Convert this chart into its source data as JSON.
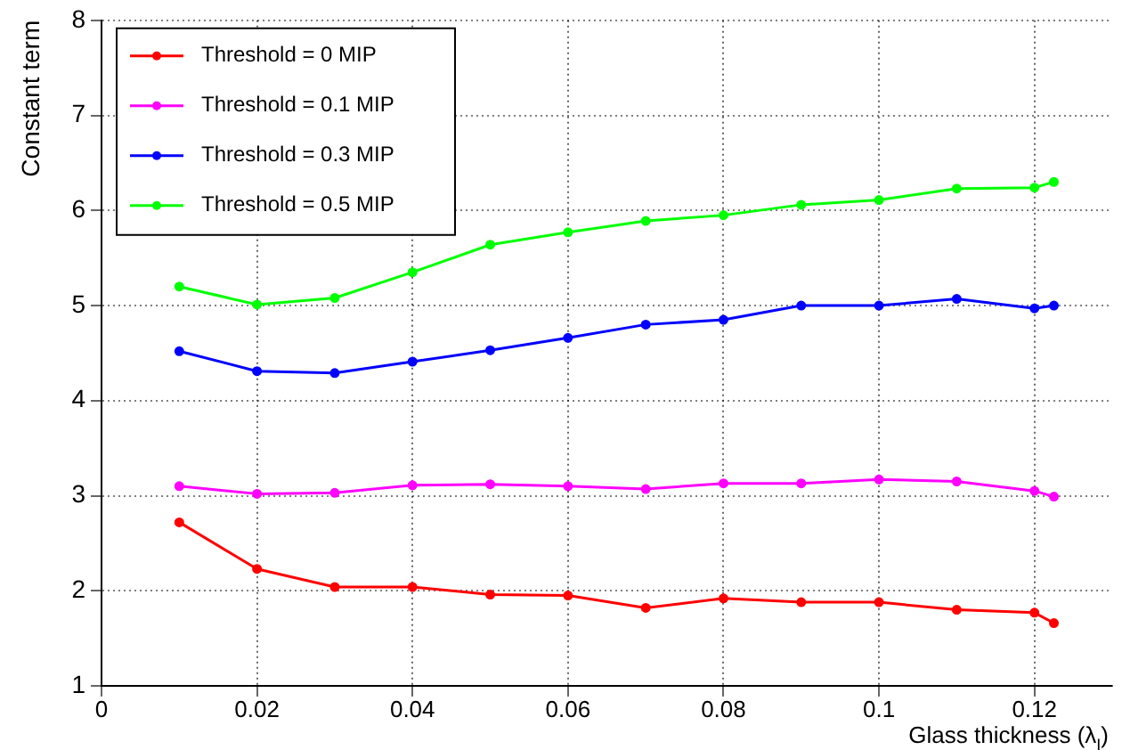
{
  "chart_data": {
    "type": "line",
    "xlabel": "Glass thickness (λ$_{I}$)",
    "ylabel": "Constant term",
    "x": [
      0.01,
      0.02,
      0.03,
      0.04,
      0.05,
      0.06,
      0.07,
      0.08,
      0.09,
      0.1,
      0.11,
      0.12,
      0.1225
    ],
    "series": [
      {
        "name": "Threshold = 0 MIP",
        "color": "#ff0000",
        "values": [
          2.72,
          2.23,
          2.04,
          2.04,
          1.96,
          1.95,
          1.82,
          1.92,
          1.88,
          1.88,
          1.8,
          1.77,
          1.66
        ]
      },
      {
        "name": "Threshold = 0.1 MIP",
        "color": "#ff00ff",
        "values": [
          3.1,
          3.02,
          3.03,
          3.11,
          3.12,
          3.1,
          3.07,
          3.13,
          3.13,
          3.17,
          3.15,
          3.05,
          2.99
        ]
      },
      {
        "name": "Threshold = 0.3 MIP",
        "color": "#0000ff",
        "values": [
          4.52,
          4.31,
          4.29,
          4.41,
          4.53,
          4.66,
          4.8,
          4.85,
          5.0,
          5.0,
          5.07,
          4.97,
          5.0
        ]
      },
      {
        "name": "Threshold = 0.5 MIP",
        "color": "#00ff00",
        "values": [
          5.2,
          5.01,
          5.08,
          5.35,
          5.64,
          5.77,
          5.89,
          5.95,
          6.06,
          6.11,
          6.23,
          6.24,
          6.3
        ]
      }
    ],
    "xlim": [
      0,
      0.13
    ],
    "xticks": [
      0,
      0.02,
      0.04,
      0.06,
      0.08,
      0.1,
      0.12
    ],
    "ylim": [
      1,
      8
    ],
    "yticks": [
      1,
      2,
      3,
      4,
      5,
      6,
      7,
      8
    ],
    "grid": true,
    "legend": "top left",
    "marker": "circle",
    "line_style": "solid"
  }
}
